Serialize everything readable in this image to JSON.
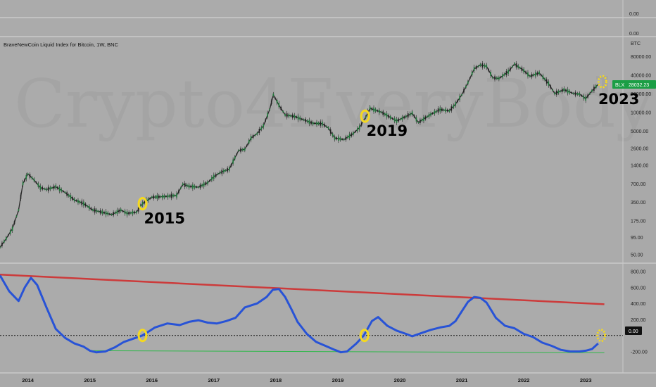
{
  "header": {
    "title": "BraveNewCoin Liquid Index for Bitcoin, 1W, BNC",
    "top_axis_labels": [
      "0.00",
      "0.00"
    ],
    "currency": "BTC"
  },
  "price_badge": {
    "symbol": "BLX",
    "value": "28032.23",
    "color": "#1b9e45"
  },
  "osc_badge": {
    "value": "0.00"
  },
  "watermark": {
    "text": "Crypto4EveryBody"
  },
  "annotations": [
    {
      "label": "2015",
      "date": 2015.85,
      "price": 330
    },
    {
      "label": "2019",
      "date": 2019.44,
      "price": 8600
    },
    {
      "label": "2023",
      "date": 2023.27,
      "price": 31000
    }
  ],
  "chart_data": [
    {
      "type": "line",
      "title": "",
      "yscale": "log",
      "ylim": [
        40,
        150000
      ],
      "xlim": [
        2013.55,
        2023.6
      ],
      "yticks": [
        80000,
        40000,
        20000,
        10000,
        5000,
        2600,
        1400,
        700,
        350,
        175,
        95,
        50
      ],
      "ytick_labels": [
        "80000.00",
        "40000.00",
        "20000.00",
        "10000.00",
        "5000.00",
        "2600.00",
        "1400.00",
        "700.00",
        "350.00",
        "175.00",
        "95.00",
        "50.00"
      ],
      "xticks": [
        2014,
        2015,
        2016,
        2017,
        2018,
        2019,
        2020,
        2021,
        2022,
        2023
      ],
      "xtick_labels": [
        "2014",
        "2015",
        "2016",
        "2017",
        "2018",
        "2019",
        "2020",
        "2021",
        "2022",
        "2023"
      ],
      "series": [
        {
          "x": [
            2013.55,
            2013.65,
            2013.75,
            2013.85,
            2013.92,
            2014.0,
            2014.1,
            2014.2,
            2014.3,
            2014.45,
            2014.6,
            2014.75,
            2014.9,
            2015.05,
            2015.2,
            2015.35,
            2015.5,
            2015.6,
            2015.75,
            2015.85,
            2016.0,
            2016.2,
            2016.4,
            2016.5,
            2016.6,
            2016.75,
            2016.9,
            2017.0,
            2017.1,
            2017.25,
            2017.4,
            2017.5,
            2017.6,
            2017.7,
            2017.8,
            2017.9,
            2017.96,
            2018.05,
            2018.15,
            2018.3,
            2018.45,
            2018.6,
            2018.75,
            2018.85,
            2018.95,
            2019.1,
            2019.25,
            2019.35,
            2019.45,
            2019.52,
            2019.7,
            2019.85,
            2019.95,
            2020.1,
            2020.2,
            2020.3,
            2020.5,
            2020.65,
            2020.8,
            2020.9,
            2021.0,
            2021.1,
            2021.2,
            2021.3,
            2021.4,
            2021.5,
            2021.6,
            2021.75,
            2021.85,
            2022.0,
            2022.1,
            2022.25,
            2022.4,
            2022.5,
            2022.65,
            2022.8,
            2022.9,
            2023.0,
            2023.1,
            2023.2
          ],
          "y": [
            65,
            90,
            130,
            260,
            700,
            1000,
            800,
            600,
            560,
            620,
            500,
            380,
            330,
            260,
            240,
            220,
            260,
            230,
            240,
            330,
            420,
            430,
            450,
            680,
            630,
            610,
            720,
            900,
            1050,
            1200,
            2400,
            2500,
            3800,
            4500,
            6000,
            11000,
            19000,
            13000,
            9000,
            8500,
            7500,
            6600,
            6500,
            5500,
            3800,
            3600,
            4500,
            5600,
            8300,
            11500,
            10000,
            8200,
            7200,
            8500,
            9600,
            6800,
            9200,
            11000,
            10500,
            13500,
            19000,
            30000,
            50000,
            58000,
            55000,
            36000,
            35000,
            45000,
            60000,
            47000,
            38000,
            43000,
            29000,
            20000,
            23000,
            20000,
            19500,
            16500,
            22000,
            28032
          ]
        }
      ]
    },
    {
      "type": "line",
      "title": "",
      "ylim": [
        -380,
        850
      ],
      "yticks": [
        800,
        600,
        400,
        200,
        0,
        -200
      ],
      "ytick_labels": [
        "800.00",
        "600.00",
        "400.00",
        "200.00",
        "0.00",
        "-200.00"
      ],
      "xlim": [
        2013.55,
        2023.6
      ],
      "series": [
        {
          "color": "#2853d6",
          "x": [
            2013.55,
            2013.7,
            2013.85,
            2013.95,
            2014.05,
            2014.15,
            2014.3,
            2014.45,
            2014.6,
            2014.75,
            2014.9,
            2015.0,
            2015.1,
            2015.25,
            2015.4,
            2015.55,
            2015.7,
            2015.85,
            2015.95,
            2016.05,
            2016.25,
            2016.45,
            2016.6,
            2016.75,
            2016.9,
            2017.05,
            2017.2,
            2017.35,
            2017.5,
            2017.7,
            2017.85,
            2017.95,
            2018.05,
            2018.15,
            2018.25,
            2018.35,
            2018.5,
            2018.65,
            2018.8,
            2018.95,
            2019.05,
            2019.15,
            2019.3,
            2019.42,
            2019.55,
            2019.65,
            2019.8,
            2019.95,
            2020.1,
            2020.2,
            2020.35,
            2020.5,
            2020.65,
            2020.8,
            2020.9,
            2021.0,
            2021.1,
            2021.2,
            2021.3,
            2021.4,
            2021.55,
            2021.7,
            2021.85,
            2022.0,
            2022.15,
            2022.3,
            2022.45,
            2022.6,
            2022.75,
            2022.9,
            2023.0,
            2023.1,
            2023.2
          ],
          "y": [
            750,
            550,
            430,
            600,
            720,
            630,
            350,
            80,
            -30,
            -100,
            -140,
            -190,
            -210,
            -200,
            -150,
            -80,
            -40,
            0,
            50,
            100,
            150,
            130,
            170,
            190,
            160,
            150,
            180,
            220,
            350,
            400,
            480,
            570,
            580,
            480,
            330,
            170,
            20,
            -80,
            -130,
            -180,
            -210,
            -200,
            -100,
            0,
            180,
            230,
            120,
            60,
            20,
            -10,
            30,
            70,
            100,
            120,
            180,
            300,
            420,
            480,
            470,
            410,
            220,
            120,
            90,
            20,
            -20,
            -90,
            -130,
            -180,
            -200,
            -200,
            -190,
            -170,
            -100
          ]
        }
      ],
      "trendlines": [
        {
          "name": "resistance",
          "color": "#cc3b3b",
          "x": [
            2013.55,
            2023.3
          ],
          "y": [
            760,
            390
          ]
        },
        {
          "name": "support",
          "color": "#2fb84a",
          "x": [
            2015.0,
            2023.3
          ],
          "y": [
            -190,
            -215
          ]
        },
        {
          "name": "zero",
          "color": "#111111",
          "x": [
            2013.55,
            2023.6
          ],
          "y": [
            0,
            0
          ]
        }
      ],
      "markers": [
        {
          "date": 2015.85,
          "value": 0
        },
        {
          "date": 2019.43,
          "value": 0
        },
        {
          "date": 2023.25,
          "value": 0
        }
      ]
    }
  ]
}
